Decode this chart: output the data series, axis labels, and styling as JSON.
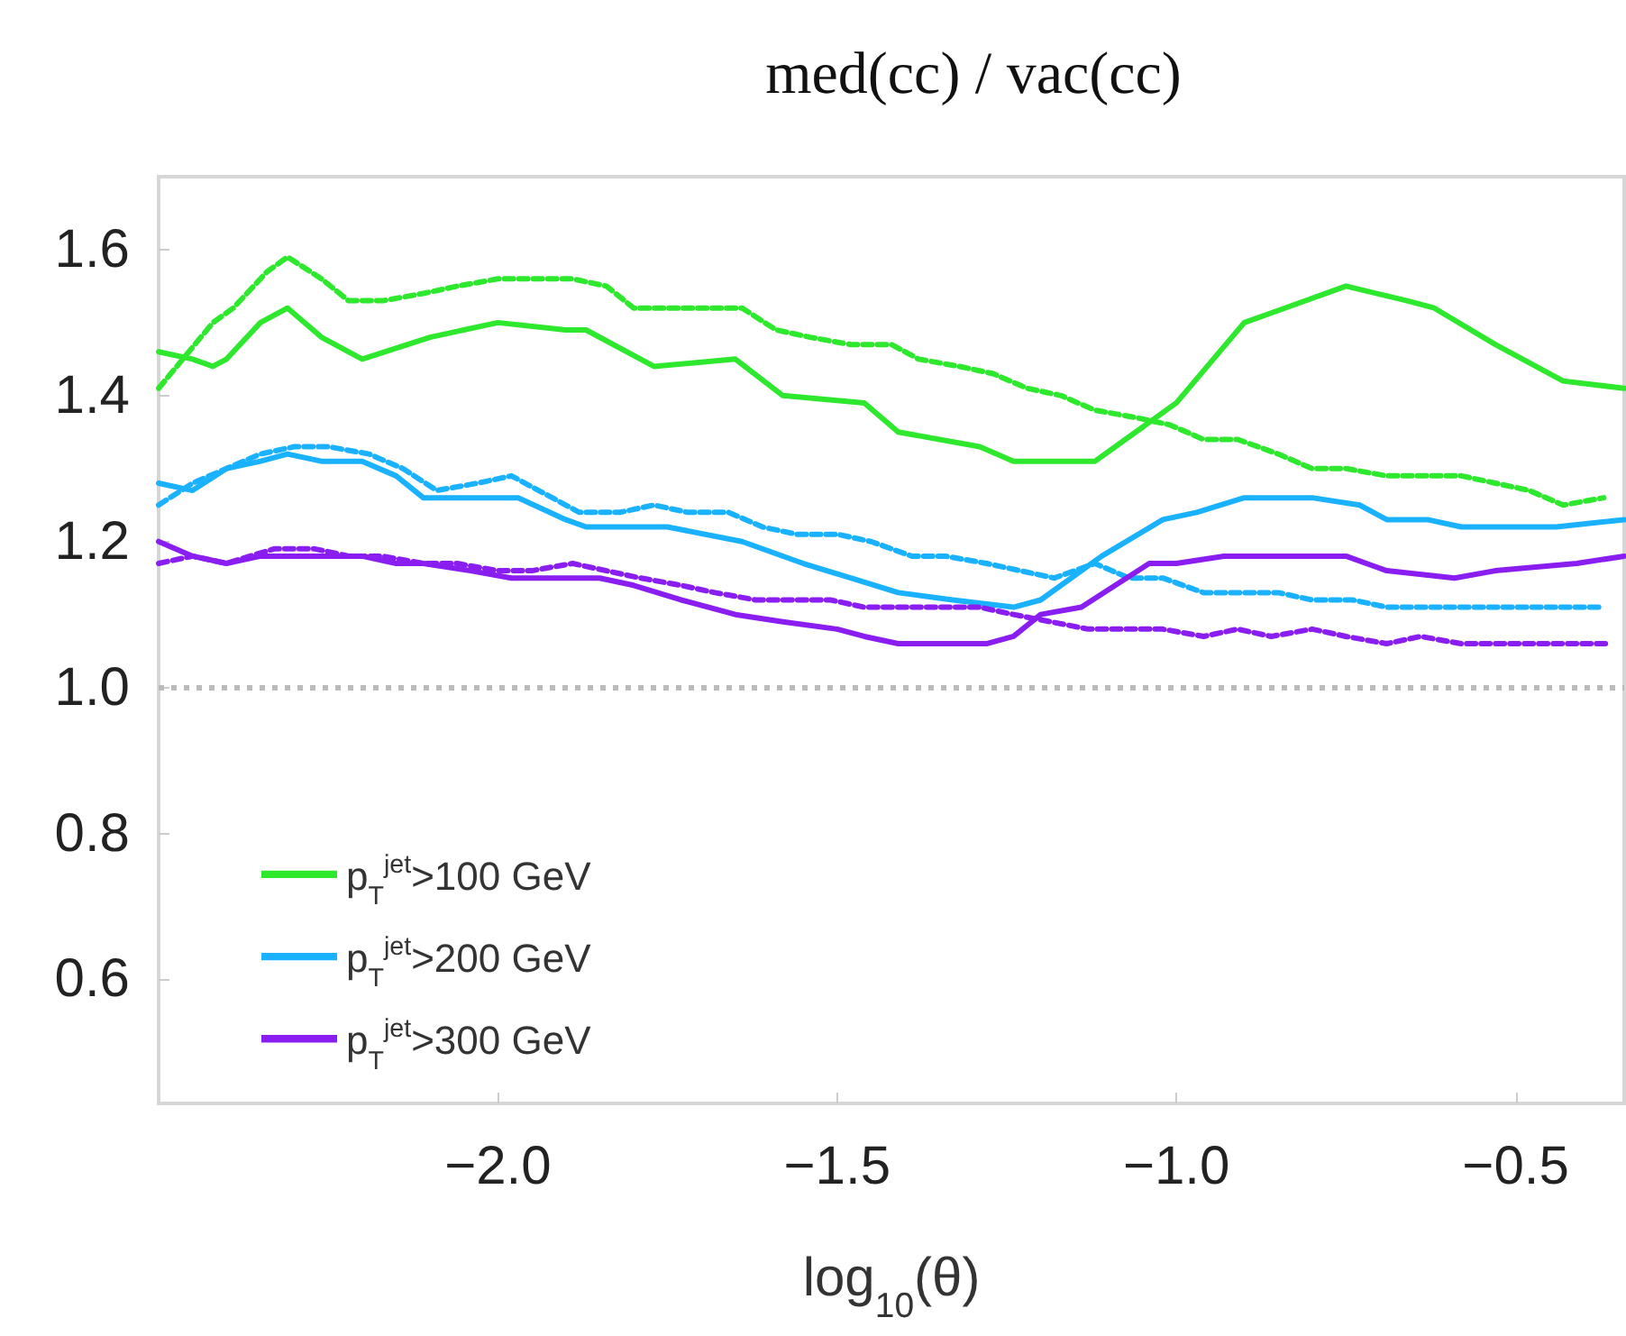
{
  "chart_data": {
    "type": "line",
    "title": "med(cc) / vac(cc)",
    "xlabel": "log$_{10}$(θ)",
    "xlim": [
      -2.5,
      -0.34
    ],
    "ylim": [
      0.43,
      1.7
    ],
    "xticks": [
      {
        "value": -2,
        "label": "−2.0"
      },
      {
        "value": -1.5,
        "label": "−1.5"
      },
      {
        "value": -1,
        "label": "−1.0"
      },
      {
        "value": -0.5,
        "label": "−0.5"
      }
    ],
    "yticks": [
      0.6,
      0.8,
      {
        "value": 1,
        "label": "1.0"
      },
      1.2,
      1.4,
      1.6
    ],
    "grid": false,
    "legend": "bottom left",
    "marker": "none",
    "ref_lines": [
      {
        "axis": "y",
        "value": 1,
        "color": "#bbbbbb",
        "line_style": "dotted"
      }
    ],
    "series": [
      {
        "name": "p$_{T}$$^{jet}$>100 GeV",
        "color": "#2ee82e",
        "line_style": "solid",
        "x": [
          -2.5,
          -2.45,
          -2.42,
          -2.4,
          -2.35,
          -2.31,
          -2.26,
          -2.2,
          -2.1,
          -2.0,
          -1.9,
          -1.87,
          -1.77,
          -1.65,
          -1.58,
          -1.46,
          -1.41,
          -1.29,
          -1.24,
          -1.12,
          -1.06,
          -1.0,
          -0.9,
          -0.84,
          -0.75,
          -0.66,
          -0.62,
          -0.53,
          -0.43,
          -0.34
        ],
        "values": [
          1.46,
          1.45,
          1.44,
          1.45,
          1.5,
          1.52,
          1.48,
          1.45,
          1.48,
          1.5,
          1.49,
          1.49,
          1.44,
          1.45,
          1.4,
          1.39,
          1.35,
          1.33,
          1.31,
          1.31,
          1.35,
          1.39,
          1.5,
          1.52,
          1.55,
          1.53,
          1.52,
          1.47,
          1.42,
          1.41
        ]
      },
      {
        "color": "#2ee82e",
        "line_style": "dashed",
        "x": [
          -2.5,
          -2.42,
          -2.39,
          -2.34,
          -2.31,
          -2.26,
          -2.22,
          -2.17,
          -2.11,
          -2.06,
          -2.0,
          -1.95,
          -1.89,
          -1.84,
          -1.8,
          -1.74,
          -1.69,
          -1.64,
          -1.59,
          -1.54,
          -1.48,
          -1.42,
          -1.38,
          -1.32,
          -1.27,
          -1.22,
          -1.17,
          -1.12,
          -1.06,
          -1.01,
          -0.96,
          -0.91,
          -0.85,
          -0.8,
          -0.75,
          -0.69,
          -0.64,
          -0.58,
          -0.53,
          -0.48,
          -0.43,
          -0.37
        ],
        "values": [
          1.41,
          1.5,
          1.52,
          1.57,
          1.59,
          1.56,
          1.53,
          1.53,
          1.54,
          1.55,
          1.56,
          1.56,
          1.56,
          1.55,
          1.52,
          1.52,
          1.52,
          1.52,
          1.49,
          1.48,
          1.47,
          1.47,
          1.45,
          1.44,
          1.43,
          1.41,
          1.4,
          1.38,
          1.37,
          1.36,
          1.34,
          1.34,
          1.32,
          1.3,
          1.3,
          1.29,
          1.29,
          1.29,
          1.28,
          1.27,
          1.25,
          1.26
        ]
      },
      {
        "name": "p$_{T}$$^{jet}$>200 GeV",
        "color": "#1ab2ff",
        "line_style": "solid",
        "x": [
          -2.5,
          -2.45,
          -2.4,
          -2.35,
          -2.31,
          -2.26,
          -2.2,
          -2.15,
          -2.11,
          -2.06,
          -1.97,
          -1.9,
          -1.87,
          -1.75,
          -1.64,
          -1.55,
          -1.48,
          -1.41,
          -1.33,
          -1.24,
          -1.2,
          -1.17,
          -1.11,
          -1.02,
          -0.97,
          -0.9,
          -0.8,
          -0.73,
          -0.69,
          -0.63,
          -0.58,
          -0.44,
          -0.34
        ],
        "values": [
          1.28,
          1.27,
          1.3,
          1.31,
          1.32,
          1.31,
          1.31,
          1.29,
          1.26,
          1.26,
          1.26,
          1.23,
          1.22,
          1.22,
          1.2,
          1.17,
          1.15,
          1.13,
          1.12,
          1.11,
          1.12,
          1.14,
          1.18,
          1.23,
          1.24,
          1.26,
          1.26,
          1.25,
          1.23,
          1.23,
          1.22,
          1.22,
          1.23
        ]
      },
      {
        "color": "#1ab2ff",
        "line_style": "dashed",
        "x": [
          -2.5,
          -2.45,
          -2.4,
          -2.35,
          -2.3,
          -2.25,
          -2.19,
          -2.14,
          -2.09,
          -2.03,
          -1.98,
          -1.94,
          -1.88,
          -1.82,
          -1.77,
          -1.72,
          -1.66,
          -1.61,
          -1.56,
          -1.5,
          -1.45,
          -1.39,
          -1.34,
          -1.28,
          -1.23,
          -1.18,
          -1.12,
          -1.07,
          -1.02,
          -0.96,
          -0.91,
          -0.85,
          -0.8,
          -0.74,
          -0.69,
          -0.63,
          -0.58,
          -0.53,
          -0.47,
          -0.42,
          -0.37
        ],
        "values": [
          1.25,
          1.28,
          1.3,
          1.32,
          1.33,
          1.33,
          1.32,
          1.3,
          1.27,
          1.28,
          1.29,
          1.27,
          1.24,
          1.24,
          1.25,
          1.24,
          1.24,
          1.22,
          1.21,
          1.21,
          1.2,
          1.18,
          1.18,
          1.17,
          1.16,
          1.15,
          1.17,
          1.15,
          1.15,
          1.13,
          1.13,
          1.13,
          1.12,
          1.12,
          1.11,
          1.11,
          1.11,
          1.11,
          1.11,
          1.11,
          1.11
        ]
      },
      {
        "name": "p$_{T}$$^{jet}$>300 GeV",
        "color": "#8a1ef0",
        "line_style": "solid",
        "x": [
          -2.5,
          -2.45,
          -2.4,
          -2.35,
          -2.31,
          -2.26,
          -2.2,
          -2.15,
          -2.11,
          -2.04,
          -1.98,
          -1.9,
          -1.85,
          -1.8,
          -1.73,
          -1.65,
          -1.58,
          -1.5,
          -1.46,
          -1.41,
          -1.37,
          -1.28,
          -1.24,
          -1.2,
          -1.14,
          -1.09,
          -1.04,
          -1.0,
          -0.93,
          -0.9,
          -0.75,
          -0.69,
          -0.59,
          -0.53,
          -0.41,
          -0.34
        ],
        "values": [
          1.2,
          1.18,
          1.17,
          1.18,
          1.18,
          1.18,
          1.18,
          1.17,
          1.17,
          1.16,
          1.15,
          1.15,
          1.15,
          1.14,
          1.12,
          1.1,
          1.09,
          1.08,
          1.07,
          1.06,
          1.06,
          1.06,
          1.07,
          1.1,
          1.11,
          1.14,
          1.17,
          1.17,
          1.18,
          1.18,
          1.18,
          1.16,
          1.15,
          1.16,
          1.17,
          1.18
        ]
      },
      {
        "color": "#8a1ef0",
        "line_style": "dashed",
        "x": [
          -2.5,
          -2.45,
          -2.4,
          -2.33,
          -2.27,
          -2.22,
          -2.17,
          -2.11,
          -2.06,
          -2.0,
          -1.95,
          -1.89,
          -1.84,
          -1.79,
          -1.73,
          -1.68,
          -1.62,
          -1.57,
          -1.51,
          -1.46,
          -1.4,
          -1.35,
          -1.29,
          -1.24,
          -1.13,
          -1.07,
          -1.02,
          -0.96,
          -0.91,
          -0.86,
          -0.8,
          -0.75,
          -0.69,
          -0.64,
          -0.58,
          -0.53,
          -0.47,
          -0.42,
          -0.36
        ],
        "values": [
          1.17,
          1.18,
          1.17,
          1.19,
          1.19,
          1.18,
          1.18,
          1.17,
          1.17,
          1.16,
          1.16,
          1.17,
          1.16,
          1.15,
          1.14,
          1.13,
          1.12,
          1.12,
          1.12,
          1.11,
          1.11,
          1.11,
          1.11,
          1.1,
          1.08,
          1.08,
          1.08,
          1.07,
          1.08,
          1.07,
          1.08,
          1.07,
          1.06,
          1.07,
          1.06,
          1.06,
          1.06,
          1.06,
          1.06
        ]
      }
    ]
  }
}
